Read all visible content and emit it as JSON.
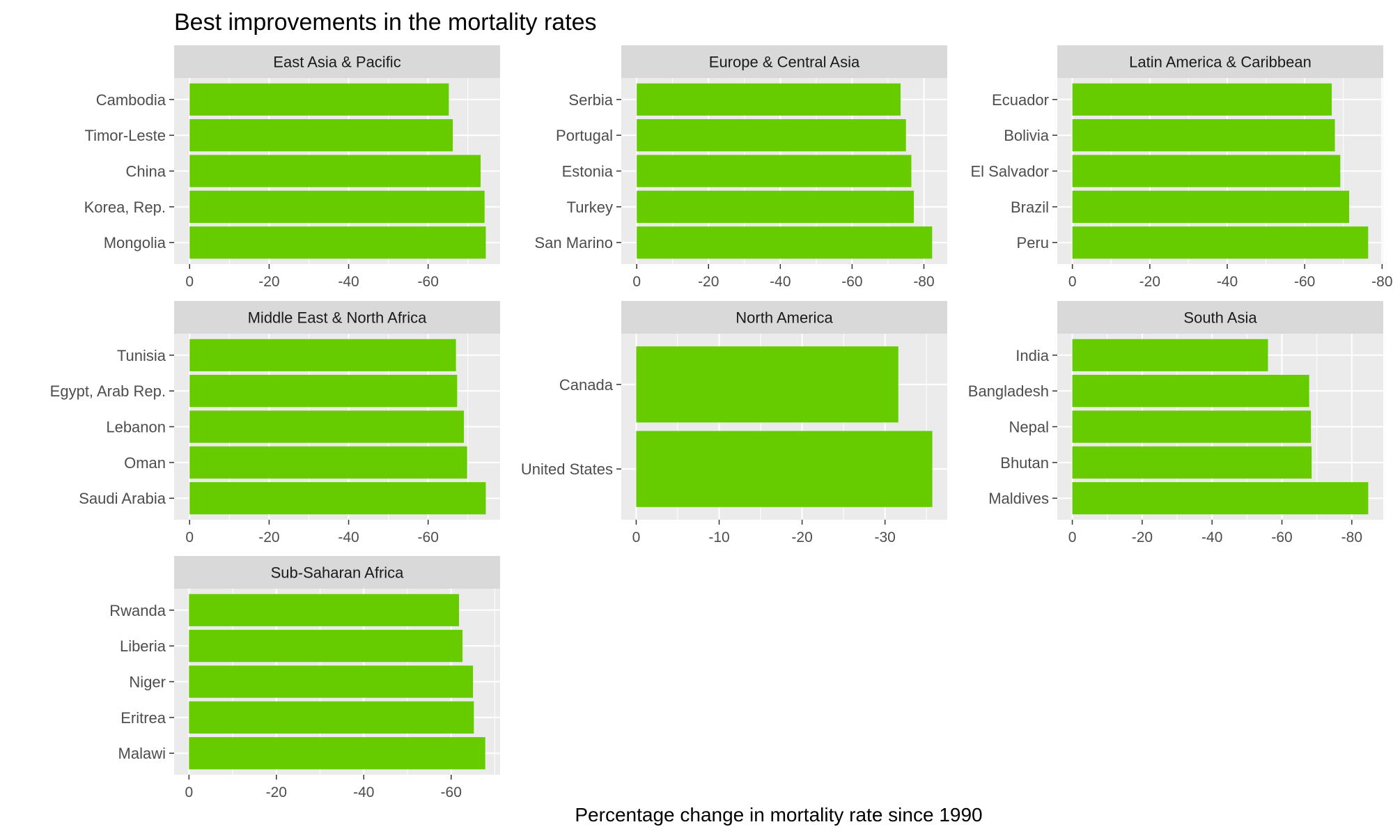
{
  "chart_data": {
    "type": "bar",
    "orientation": "horizontal",
    "title": "Best improvements in the mortality rates",
    "xlabel": "Percentage change in mortality rate since 1990",
    "ylabel": "",
    "bar_color": "#66cc00",
    "panel_background": "#ebebeb",
    "strip_background": "#d9d9d9",
    "grid": true,
    "panels": [
      {
        "name": "East Asia & Pacific",
        "categories": [
          "Cambodia",
          "Timor-Leste",
          "China",
          "Korea, Rep.",
          "Mongolia"
        ],
        "values": [
          -65.2,
          -66.2,
          -73.2,
          -74.2,
          -74.5
        ],
        "xlim": [
          3.9,
          -78.1
        ],
        "ticks": [
          0,
          -20,
          -40,
          -60
        ],
        "tick_labels": [
          "0",
          "-20",
          "-40",
          "-60"
        ]
      },
      {
        "name": "Europe & Central Asia",
        "categories": [
          "Serbia",
          "Portugal",
          "Estonia",
          "Turkey",
          "San Marino"
        ],
        "values": [
          -73.5,
          -75.0,
          -76.5,
          -77.2,
          -82.3
        ],
        "xlim": [
          4.3,
          -86.5
        ],
        "ticks": [
          0,
          -20,
          -40,
          -60,
          -80
        ],
        "tick_labels": [
          "0",
          "-20",
          "-40",
          "-60",
          "-80"
        ]
      },
      {
        "name": "Latin America & Caribbean",
        "categories": [
          "Ecuador",
          "Bolivia",
          "El Salvador",
          "Brazil",
          "Peru"
        ],
        "values": [
          -67.0,
          -67.8,
          -69.2,
          -71.5,
          -76.4
        ],
        "xlim": [
          3.9,
          -80.3
        ],
        "ticks": [
          0,
          -20,
          -40,
          -60,
          -80
        ],
        "tick_labels": [
          "0",
          "-20",
          "-40",
          "-60",
          "-80"
        ]
      },
      {
        "name": "Middle East & North Africa",
        "categories": [
          "Tunisia",
          "Egypt, Arab Rep.",
          "Lebanon",
          "Oman",
          "Saudi Arabia"
        ],
        "values": [
          -67.0,
          -67.3,
          -69.0,
          -69.8,
          -74.5
        ],
        "xlim": [
          3.9,
          -78.1
        ],
        "ticks": [
          0,
          -20,
          -40,
          -60
        ],
        "tick_labels": [
          "0",
          "-20",
          "-40",
          "-60"
        ]
      },
      {
        "name": "North America",
        "categories": [
          "Canada",
          "United States"
        ],
        "values": [
          -31.6,
          -35.7
        ],
        "xlim": [
          1.8,
          -37.5
        ],
        "ticks": [
          0,
          -10,
          -20,
          -30
        ],
        "tick_labels": [
          "0",
          "-10",
          "-20",
          "-30"
        ]
      },
      {
        "name": "South Asia",
        "categories": [
          "India",
          "Bangladesh",
          "Nepal",
          "Bhutan",
          "Maldives"
        ],
        "values": [
          -56.0,
          -67.8,
          -68.3,
          -68.5,
          -84.7
        ],
        "xlim": [
          4.3,
          -89.0
        ],
        "ticks": [
          0,
          -20,
          -40,
          -60,
          -80
        ],
        "tick_labels": [
          "0",
          "-20",
          "-40",
          "-60",
          "-80"
        ]
      },
      {
        "name": "Sub-Saharan Africa",
        "categories": [
          "Rwanda",
          "Liberia",
          "Niger",
          "Eritrea",
          "Malawi"
        ],
        "values": [
          -61.8,
          -62.6,
          -65.0,
          -65.2,
          -67.8
        ],
        "xlim": [
          3.4,
          -71.2
        ],
        "ticks": [
          0,
          -20,
          -40,
          -60
        ],
        "tick_labels": [
          "0",
          "-20",
          "-40",
          "-60"
        ]
      }
    ]
  }
}
